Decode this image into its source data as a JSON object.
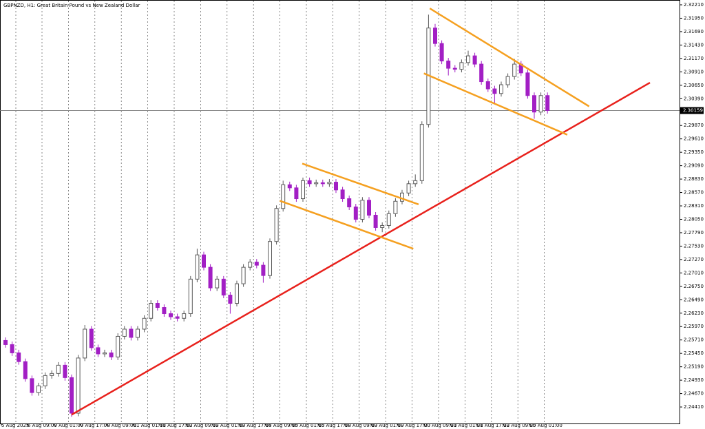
{
  "chart_data": {
    "type": "candlestick",
    "title": "GBPNZD, H1:  Great Britain Pound vs New Zealand Dollar",
    "up_color": "#5a5a5a",
    "down_color": "#a21fc4",
    "ylim": [
      2.2409,
      2.3229
    ],
    "yticks": [
      {
        "value": 2.3221,
        "label": "2.32210"
      },
      {
        "value": 2.3195,
        "label": "2.31950"
      },
      {
        "value": 2.3169,
        "label": "2.31690"
      },
      {
        "value": 2.3143,
        "label": "2.31430"
      },
      {
        "value": 2.3117,
        "label": "2.31170"
      },
      {
        "value": 2.3091,
        "label": "2.30910"
      },
      {
        "value": 2.3065,
        "label": "2.30650"
      },
      {
        "value": 2.3039,
        "label": "2.30390"
      },
      {
        "value": 2.2987,
        "label": "2.29870"
      },
      {
        "value": 2.2961,
        "label": "2.29610"
      },
      {
        "value": 2.2935,
        "label": "2.29350"
      },
      {
        "value": 2.2909,
        "label": "2.29090"
      },
      {
        "value": 2.2883,
        "label": "2.28830"
      },
      {
        "value": 2.2857,
        "label": "2.28570"
      },
      {
        "value": 2.2831,
        "label": "2.28310"
      },
      {
        "value": 2.2805,
        "label": "2.28050"
      },
      {
        "value": 2.2779,
        "label": "2.27790"
      },
      {
        "value": 2.2753,
        "label": "2.27530"
      },
      {
        "value": 2.2727,
        "label": "2.27270"
      },
      {
        "value": 2.2701,
        "label": "2.27010"
      },
      {
        "value": 2.2675,
        "label": "2.26750"
      },
      {
        "value": 2.2649,
        "label": "2.26490"
      },
      {
        "value": 2.2623,
        "label": "2.26230"
      },
      {
        "value": 2.2597,
        "label": "2.25970"
      },
      {
        "value": 2.2571,
        "label": "2.25710"
      },
      {
        "value": 2.2545,
        "label": "2.25450"
      },
      {
        "value": 2.2519,
        "label": "2.25190"
      },
      {
        "value": 2.2493,
        "label": "2.24930"
      },
      {
        "value": 2.2467,
        "label": "2.24670"
      },
      {
        "value": 2.2441,
        "label": "2.24410"
      }
    ],
    "current_price": 2.30159,
    "x_labels": [
      "5 Aug 2025",
      "6 Aug 09:00",
      "7 Aug 01:00",
      "7 Aug 17:00",
      "8 Aug 09:00",
      "11 Aug 01:00",
      "11 Aug 17:00",
      "12 Aug 09:00",
      "13 Aug 01:00",
      "13 Aug 17:00",
      "14 Aug 09:00",
      "15 Aug 01:00",
      "15 Aug 17:00",
      "18 Aug 09:00",
      "19 Aug 01:00",
      "19 Aug 17:00",
      "20 Aug 09:00",
      "21 Aug 01:00",
      "21 Aug 17:00",
      "22 Aug 09:00",
      "25 Aug 01:00"
    ],
    "ohlc": [
      [
        2.257,
        2.2576,
        2.2556,
        2.2562
      ],
      [
        2.2562,
        2.2568,
        2.254,
        2.2546
      ],
      [
        2.2546,
        2.2552,
        2.2523,
        2.2529
      ],
      [
        2.2529,
        2.2535,
        2.249,
        2.2496
      ],
      [
        2.2496,
        2.2502,
        2.2463,
        2.2469
      ],
      [
        2.2469,
        2.2488,
        2.2463,
        2.2482
      ],
      [
        2.2482,
        2.2508,
        2.2476,
        2.2502
      ],
      [
        2.2502,
        2.2512,
        2.2496,
        2.2506
      ],
      [
        2.2506,
        2.2528,
        2.25,
        2.2522
      ],
      [
        2.2522,
        2.2528,
        2.2492,
        2.2498
      ],
      [
        2.2498,
        2.2504,
        2.2422,
        2.2429
      ],
      [
        2.2429,
        2.2542,
        2.2423,
        2.2536
      ],
      [
        2.2536,
        2.26,
        2.253,
        2.2592
      ],
      [
        2.2592,
        2.2598,
        2.255,
        2.2556
      ],
      [
        2.2556,
        2.2562,
        2.2538,
        2.2544
      ],
      [
        2.2544,
        2.2552,
        2.2538,
        2.2546
      ],
      [
        2.2546,
        2.2552,
        2.2532,
        2.2538
      ],
      [
        2.2538,
        2.2584,
        2.2532,
        2.2578
      ],
      [
        2.2578,
        2.2598,
        2.2572,
        2.2592
      ],
      [
        2.2592,
        2.2598,
        2.257,
        2.2576
      ],
      [
        2.2576,
        2.2598,
        2.257,
        2.2592
      ],
      [
        2.2592,
        2.2619,
        2.2586,
        2.2613
      ],
      [
        2.2613,
        2.2648,
        2.2607,
        2.2642
      ],
      [
        2.2642,
        2.2648,
        2.2628,
        2.2634
      ],
      [
        2.2634,
        2.264,
        2.2616,
        2.2622
      ],
      [
        2.2622,
        2.2628,
        2.261,
        2.2616
      ],
      [
        2.2616,
        2.2622,
        2.2607,
        2.2613
      ],
      [
        2.2613,
        2.2628,
        2.2607,
        2.2622
      ],
      [
        2.2622,
        2.2695,
        2.2616,
        2.2689
      ],
      [
        2.2689,
        2.2748,
        2.2683,
        2.2736
      ],
      [
        2.2736,
        2.2742,
        2.2706,
        2.2712
      ],
      [
        2.2712,
        2.2718,
        2.2666,
        2.2672
      ],
      [
        2.2672,
        2.2695,
        2.2666,
        2.2689
      ],
      [
        2.2689,
        2.2695,
        2.2652,
        2.2658
      ],
      [
        2.2658,
        2.2664,
        2.2622,
        2.2642
      ],
      [
        2.2642,
        2.2686,
        2.2636,
        2.268
      ],
      [
        2.268,
        2.2718,
        2.2674,
        2.2712
      ],
      [
        2.2712,
        2.2728,
        2.2706,
        2.2722
      ],
      [
        2.2722,
        2.2728,
        2.271,
        2.2716
      ],
      [
        2.2716,
        2.2722,
        2.2682,
        2.2696
      ],
      [
        2.2696,
        2.2768,
        2.269,
        2.2762
      ],
      [
        2.2762,
        2.2832,
        2.2756,
        2.2826
      ],
      [
        2.2826,
        2.288,
        2.282,
        2.2872
      ],
      [
        2.2872,
        2.2878,
        2.286,
        2.2866
      ],
      [
        2.2866,
        2.2872,
        2.2839,
        2.2845
      ],
      [
        2.2845,
        2.2886,
        2.2839,
        2.288
      ],
      [
        2.288,
        2.2886,
        2.2868,
        2.2874
      ],
      [
        2.2874,
        2.2882,
        2.2868,
        2.2876
      ],
      [
        2.2876,
        2.2882,
        2.2868,
        2.2874
      ],
      [
        2.2874,
        2.2883,
        2.2868,
        2.2877
      ],
      [
        2.2877,
        2.2883,
        2.2856,
        2.2862
      ],
      [
        2.2862,
        2.2868,
        2.2839,
        2.2845
      ],
      [
        2.2845,
        2.2851,
        2.2823,
        2.2829
      ],
      [
        2.2829,
        2.2835,
        2.2799,
        2.2805
      ],
      [
        2.2805,
        2.2848,
        2.2799,
        2.2842
      ],
      [
        2.2842,
        2.2848,
        2.2807,
        2.2813
      ],
      [
        2.2813,
        2.2819,
        2.2783,
        2.2789
      ],
      [
        2.2789,
        2.2799,
        2.278,
        2.2793
      ],
      [
        2.2793,
        2.2822,
        2.2787,
        2.2816
      ],
      [
        2.2816,
        2.2846,
        2.281,
        2.284
      ],
      [
        2.284,
        2.2862,
        2.2834,
        2.2856
      ],
      [
        2.2856,
        2.288,
        2.285,
        2.2874
      ],
      [
        2.2874,
        2.2892,
        2.2868,
        2.288
      ],
      [
        2.288,
        2.2995,
        2.2874,
        2.2989
      ],
      [
        2.2989,
        2.3202,
        2.2983,
        2.3176
      ],
      [
        2.3176,
        2.3184,
        2.314,
        2.3146
      ],
      [
        2.3146,
        2.3152,
        2.3106,
        2.3112
      ],
      [
        2.3112,
        2.3118,
        2.3084,
        2.3098
      ],
      [
        2.3098,
        2.3104,
        2.309,
        2.3096
      ],
      [
        2.3096,
        2.3115,
        2.309,
        2.3109
      ],
      [
        2.3109,
        2.3132,
        2.3103,
        2.3122
      ],
      [
        2.3122,
        2.3128,
        2.31,
        2.3106
      ],
      [
        2.3106,
        2.3112,
        2.3066,
        2.3072
      ],
      [
        2.3072,
        2.3078,
        2.3052,
        2.3058
      ],
      [
        2.3058,
        2.3064,
        2.303,
        2.3049
      ],
      [
        2.3049,
        2.3072,
        2.3043,
        2.3066
      ],
      [
        2.3066,
        2.3088,
        2.306,
        2.3082
      ],
      [
        2.3082,
        2.3116,
        2.3076,
        2.3106
      ],
      [
        2.3106,
        2.3112,
        2.3083,
        2.3089
      ],
      [
        2.3089,
        2.3095,
        2.3039,
        2.3045
      ],
      [
        2.3045,
        2.3051,
        2.3,
        2.3013
      ],
      [
        2.3013,
        2.3051,
        2.3007,
        2.3045
      ],
      [
        2.3045,
        2.3051,
        2.301,
        2.3016
      ]
    ],
    "trendlines": [
      {
        "color": "#e8211c",
        "points": [
          [
            10,
            2.2426
          ],
          [
            97.5,
            2.307
          ]
        ]
      },
      {
        "color": "#f5a020",
        "points": [
          [
            44.9,
            2.2913
          ],
          [
            62.5,
            2.2834
          ]
        ]
      },
      {
        "color": "#f5a020",
        "points": [
          [
            41.5,
            2.2841
          ],
          [
            61.7,
            2.2748
          ]
        ]
      },
      {
        "color": "#f5a020",
        "points": [
          [
            64.2,
            2.3214
          ],
          [
            88.3,
            2.3024
          ]
        ]
      },
      {
        "color": "#f5a020",
        "points": [
          [
            63.3,
            2.3088
          ],
          [
            85,
            2.2969
          ]
        ]
      }
    ]
  }
}
